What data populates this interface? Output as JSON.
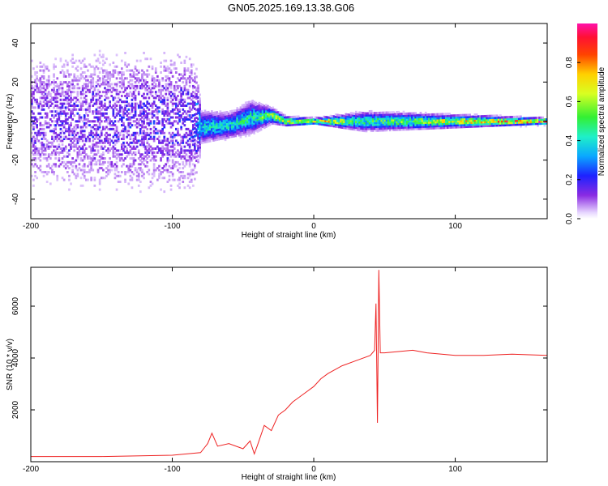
{
  "figure_title": "GN05.2025.169.13.38.G06",
  "colorbar": {
    "label": "Normalized spectral amplitude",
    "ticks": [
      "0.0",
      "0.2",
      "0.4",
      "0.6",
      "0.8"
    ]
  },
  "chart_data": [
    {
      "type": "heatmap",
      "title": "",
      "xlabel": "Height of straight line (km)",
      "ylabel": "Frequency (Hz)",
      "xlim": [
        -200,
        165
      ],
      "ylim": [
        -50,
        50
      ],
      "xticks": [
        "-200",
        "-100",
        "0",
        "100"
      ],
      "yticks": [
        "-40",
        "-20",
        "0",
        "20",
        "40"
      ],
      "colorscale": "rainbow",
      "value_range": [
        0.0,
        1.0
      ],
      "description_points": [
        {
          "x": -200,
          "spread_hz": 48,
          "center_hz": 0,
          "peak": 0.15
        },
        {
          "x": -85,
          "spread_hz": 48,
          "center_hz": 0,
          "peak": 0.2
        },
        {
          "x": -80,
          "spread_hz": 10,
          "center_hz": -3,
          "peak": 0.45
        },
        {
          "x": -60,
          "spread_hz": 8,
          "center_hz": -2,
          "peak": 0.45
        },
        {
          "x": -45,
          "spread_hz": 10,
          "center_hz": 2,
          "peak": 0.5
        },
        {
          "x": -30,
          "spread_hz": 5,
          "center_hz": 3,
          "peak": 0.6
        },
        {
          "x": -20,
          "spread_hz": 3,
          "center_hz": 0,
          "peak": 0.7
        },
        {
          "x": 0,
          "spread_hz": 2,
          "center_hz": 0,
          "peak": 0.8
        },
        {
          "x": 36,
          "spread_hz": 6,
          "center_hz": 0,
          "peak": 0.5
        },
        {
          "x": 165,
          "spread_hz": 2,
          "center_hz": 0,
          "peak": 0.95
        }
      ]
    },
    {
      "type": "line",
      "title": "",
      "xlabel": "Height of straight line (km)",
      "ylabel": "SNR (10 * v/v)",
      "xlim": [
        -200,
        165
      ],
      "ylim": [
        0,
        7500
      ],
      "xticks": [
        "-200",
        "-100",
        "0",
        "100"
      ],
      "yticks": [
        "2000",
        "4000",
        "6000"
      ],
      "series": [
        {
          "color": "#ee2222",
          "x": [
            -200,
            -150,
            -100,
            -80,
            -75,
            -72,
            -68,
            -60,
            -50,
            -45,
            -42,
            -40,
            -35,
            -30,
            -25,
            -20,
            -15,
            -10,
            -5,
            0,
            5,
            10,
            20,
            30,
            40,
            43,
            44,
            45,
            46,
            47,
            50,
            60,
            70,
            80,
            100,
            120,
            140,
            165
          ],
          "y": [
            200,
            200,
            250,
            350,
            700,
            1100,
            600,
            700,
            500,
            800,
            300,
            600,
            1400,
            1200,
            1800,
            2000,
            2300,
            2500,
            2700,
            2900,
            3200,
            3400,
            3700,
            3900,
            4100,
            4300,
            6100,
            1500,
            7400,
            4200,
            4200,
            4250,
            4300,
            4200,
            4100,
            4100,
            4150,
            4100
          ]
        }
      ]
    }
  ]
}
